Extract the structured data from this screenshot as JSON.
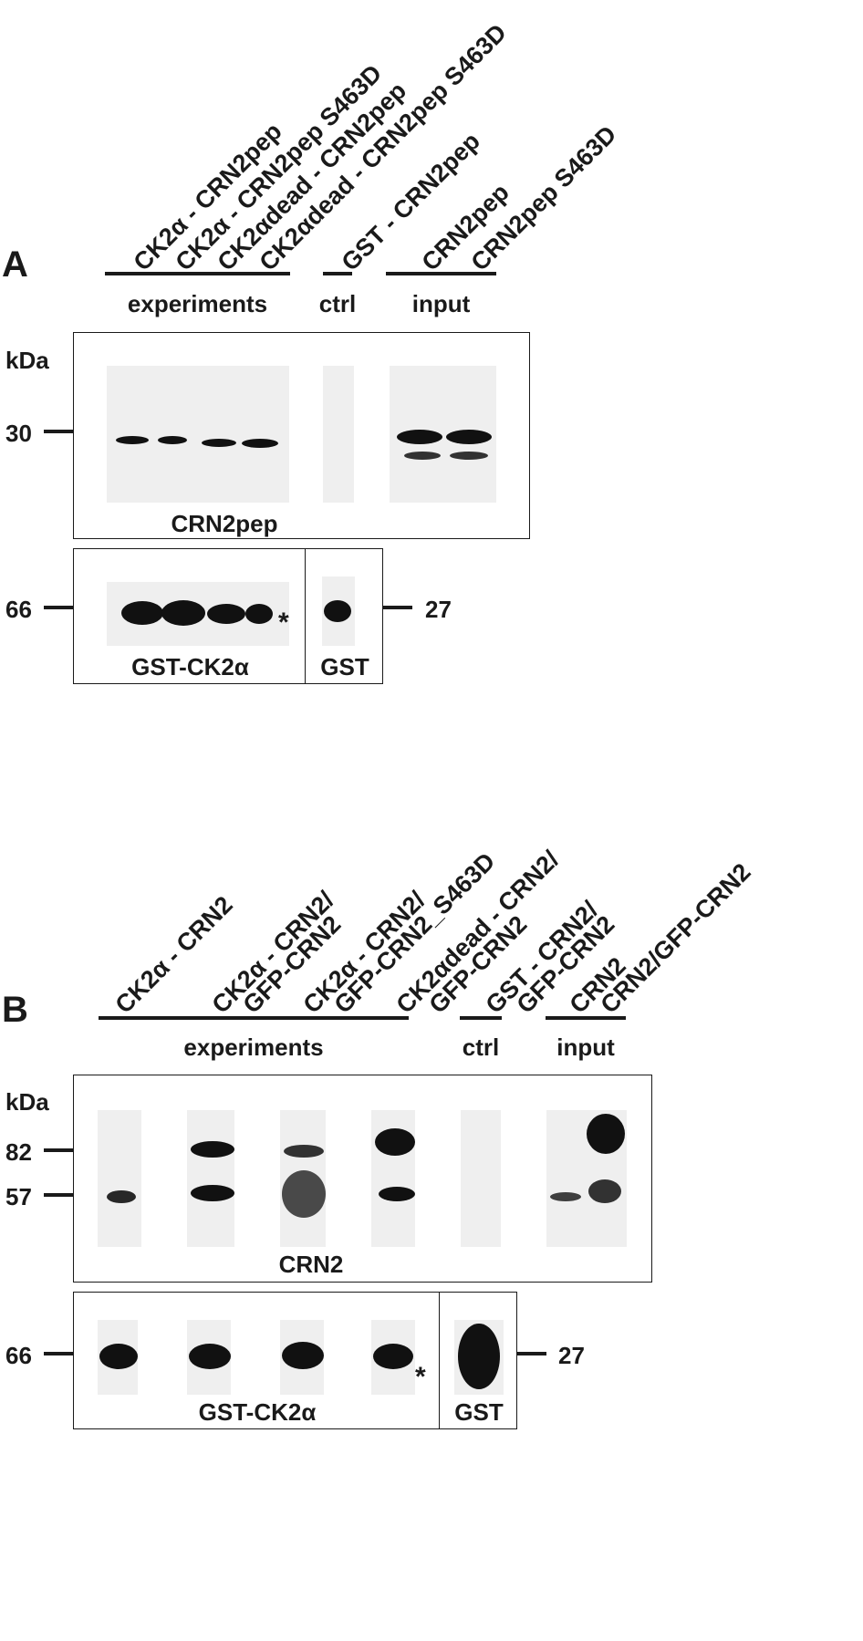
{
  "panelA": {
    "letter": "A",
    "lanes": [
      "CK2α - CRN2pep",
      "CK2α - CRN2pep S463D",
      "CK2αdead - CRN2pep",
      "CK2αdead - CRN2pep S463D",
      "GST - CRN2pep",
      "CRN2pep",
      "CRN2pep S463D"
    ],
    "groups": {
      "experiments": "experiments",
      "ctrl": "ctrl",
      "input": "input"
    },
    "kda": "kDa",
    "mw_top": "30",
    "mw_bottom_left": "66",
    "mw_bottom_right": "27",
    "blot_top_label": "CRN2pep",
    "blot_bottom_label": "GST-CK2α",
    "blot_gst_label": "GST",
    "asterisk": "*"
  },
  "panelB": {
    "letter": "B",
    "lanes": [
      "CK2α - CRN2",
      "CK2α - CRN2/",
      "GFP-CRN2",
      "CK2α - CRN2/",
      "GFP-CRN2_S463D",
      "CK2αdead - CRN2/",
      "GFP-CRN2",
      "GST - CRN2/",
      "GFP-CRN2",
      "CRN2",
      "CRN2/GFP-CRN2"
    ],
    "groups": {
      "experiments": "experiments",
      "ctrl": "ctrl",
      "input": "input"
    },
    "kda": "kDa",
    "mw_top_1": "82",
    "mw_top_2": "57",
    "mw_bottom_left": "66",
    "mw_bottom_right": "27",
    "blot_top_label": "CRN2",
    "blot_bottom_label": "GST-CK2α",
    "blot_gst_label": "GST",
    "asterisk": "*"
  }
}
